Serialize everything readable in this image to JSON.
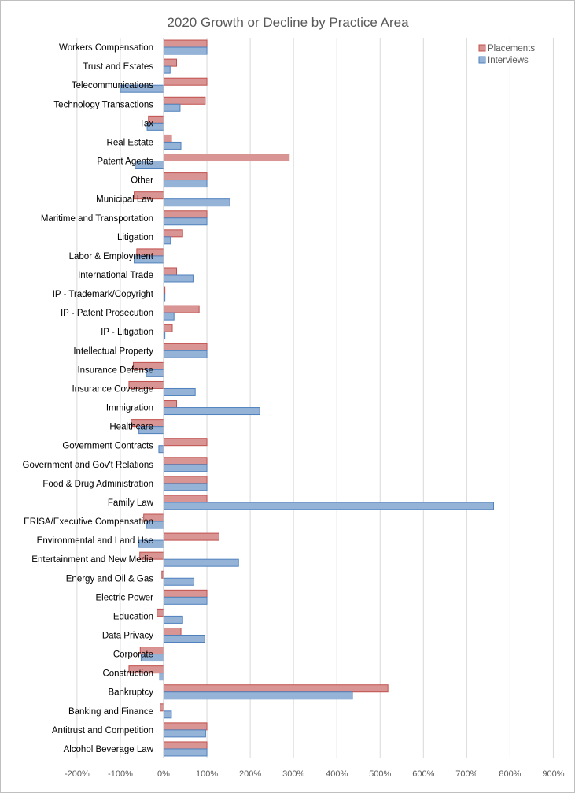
{
  "chart_data": {
    "type": "bar",
    "orientation": "horizontal",
    "title": "2020 Growth or Decline  by Practice Area",
    "xlabel": "",
    "ylabel": "",
    "xlim": [
      -200,
      900
    ],
    "x_ticks": [
      -200,
      -100,
      0,
      100,
      200,
      300,
      400,
      500,
      600,
      700,
      800,
      900
    ],
    "x_tick_labels": [
      "-200%",
      "-100%",
      "0%",
      "100%",
      "200%",
      "300%",
      "400%",
      "500%",
      "600%",
      "700%",
      "800%",
      "900%"
    ],
    "grid": "vertical",
    "legend_position": "top-right",
    "categories": [
      "Workers Compensation",
      "Trust and Estates",
      "Telecommunications",
      "Technology Transactions",
      "Tax",
      "Real Estate",
      "Patent Agents",
      "Other",
      "Municipal Law",
      "Maritime and Transportation",
      "Litigation",
      "Labor & Employment",
      "International Trade",
      "IP - Trademark/Copyright",
      "IP - Patent Prosecution",
      "IP - Litigation",
      "Intellectual Property",
      "Insurance Defense",
      "Insurance Coverage",
      "Immigration",
      "Healthcare",
      "Government Contracts",
      "Government and Gov't Relations",
      "Food & Drug Administration",
      "Family Law",
      "ERISA/Executive Compensation",
      "Environmental and Land Use",
      "Entertainment and New Media",
      "Energy and Oil & Gas",
      "Electric Power",
      "Education",
      "Data Privacy",
      "Corporate",
      "Construction",
      "Bankruptcy",
      "Banking and Finance",
      "Antitrust and Competition",
      "Alcohol Beverage Law"
    ],
    "series": [
      {
        "name": "Placements",
        "color": "#d99594",
        "stroke": "#c0504d",
        "values": [
          100,
          30,
          100,
          96,
          -35,
          18,
          290,
          100,
          -68,
          100,
          44,
          -62,
          30,
          3,
          82,
          20,
          100,
          -70,
          -80,
          30,
          -75,
          100,
          100,
          100,
          100,
          -46,
          128,
          -55,
          -4,
          100,
          -15,
          40,
          -54,
          -80,
          518,
          -8,
          100,
          100
        ]
      },
      {
        "name": "Interviews",
        "color": "#95b3d7",
        "stroke": "#4f81bd",
        "values": [
          100,
          15,
          -100,
          38,
          -38,
          40,
          -66,
          100,
          153,
          100,
          16,
          -68,
          68,
          3,
          24,
          3,
          100,
          -40,
          73,
          222,
          -57,
          -11,
          100,
          100,
          762,
          -40,
          -57,
          173,
          70,
          100,
          44,
          95,
          -52,
          -9,
          436,
          18,
          97,
          100
        ]
      }
    ]
  }
}
